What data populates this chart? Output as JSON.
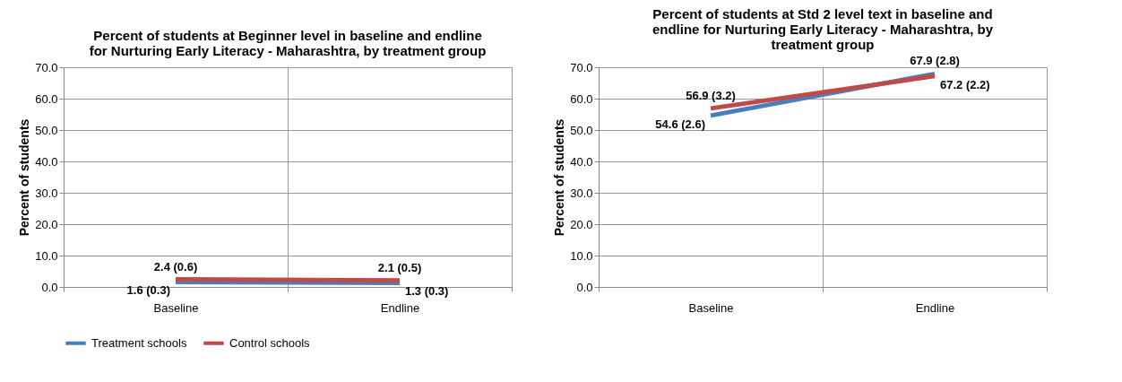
{
  "chart_data": [
    {
      "type": "line",
      "title": "Percent of students at Beginner level in baseline and endline for Nurturing Early Literacy - Maharashtra, by treatment group",
      "ylabel": "Percent of students",
      "categories": [
        "Baseline",
        "Endline"
      ],
      "series": [
        {
          "name": "Treatment schools",
          "color": "#4a7ebb",
          "values": [
            1.6,
            1.3
          ],
          "value_labels": [
            "1.6 (0.3)",
            "1.3 (0.3)"
          ]
        },
        {
          "name": "Control schools",
          "color": "#be4b48",
          "values": [
            2.4,
            2.1
          ],
          "value_labels": [
            "2.4 (0.6)",
            "2.1 (0.5)"
          ]
        }
      ],
      "ylim": [
        0,
        70
      ],
      "yticks": [
        {
          "value": 0,
          "label": "0.0"
        },
        {
          "value": 10,
          "label": "10.0"
        },
        {
          "value": 20,
          "label": "20.0"
        },
        {
          "value": 30,
          "label": "30.0"
        },
        {
          "value": 40,
          "label": "40.0"
        },
        {
          "value": 50,
          "label": "50.0"
        },
        {
          "value": 60,
          "label": "60.0"
        },
        {
          "value": 70,
          "label": "70.0"
        }
      ],
      "grid": true,
      "legend": "bottom",
      "marker": "none",
      "line_style": "solid"
    },
    {
      "type": "line",
      "title": "Percent of students at Std 2 level text in baseline and endline for Nurturing Early Literacy - Maharashtra, by treatment group",
      "ylabel": "Percent of students",
      "categories": [
        "Baseline",
        "Endline"
      ],
      "series": [
        {
          "name": "Treatment schools",
          "color": "#4a7ebb",
          "values": [
            54.6,
            67.9
          ],
          "value_labels": [
            "54.6 (2.6)",
            "67.9 (2.8)"
          ]
        },
        {
          "name": "Control schools",
          "color": "#be4b48",
          "values": [
            56.9,
            67.2
          ],
          "value_labels": [
            "56.9 (3.2)",
            "67.2 (2.2)"
          ]
        }
      ],
      "ylim": [
        0,
        70
      ],
      "yticks": [
        {
          "value": 0,
          "label": "0.0"
        },
        {
          "value": 10,
          "label": "10.0"
        },
        {
          "value": 20,
          "label": "20.0"
        },
        {
          "value": 30,
          "label": "30.0"
        },
        {
          "value": 40,
          "label": "40.0"
        },
        {
          "value": 50,
          "label": "50.0"
        },
        {
          "value": 60,
          "label": "60.0"
        },
        {
          "value": 70,
          "label": "70.0"
        }
      ],
      "grid": true,
      "legend": "bottom",
      "marker": "none",
      "line_style": "solid"
    }
  ]
}
